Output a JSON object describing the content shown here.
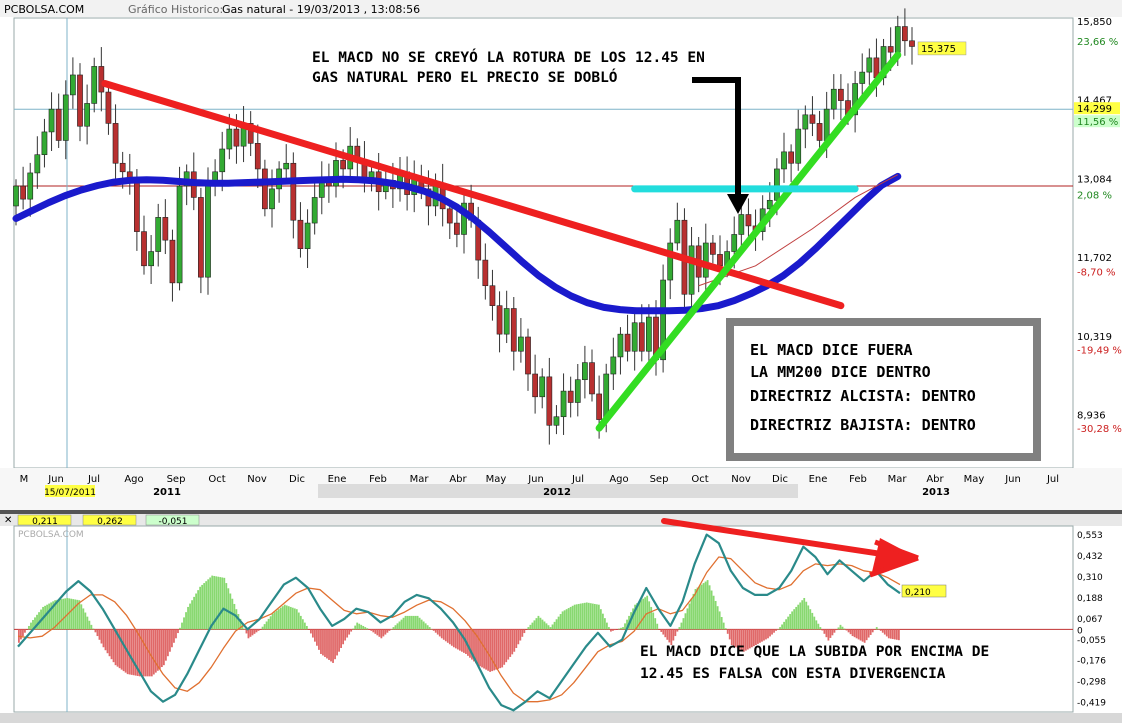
{
  "header": {
    "brand": "PCBOLSA.COM",
    "caption": "Gráfico Historico:",
    "instrument": "Gas natural - 19/03/2013 , 13:08:56"
  },
  "annotations": {
    "top_line1": "EL MACD NO SE CREYÓ LA ROTURA DE LOS 12.45 EN",
    "top_line2": "GAS NATURAL PERO EL PRECIO SE DOBLÓ",
    "box_line1": "EL MACD DICE FUERA",
    "box_line2": "LA MM200 DICE DENTRO",
    "box_line3": "DIRECTRIZ ALCISTA: DENTRO",
    "box_line4": "DIRECTRIZ BAJISTA: DENTRO",
    "bottom_line1": "EL MACD DICE QUE LA SUBIDA POR ENCIMA DE",
    "bottom_line2": "12.45 ES FALSA CON ESTA DIVERGENCIA"
  },
  "colors": {
    "bull": "#33aa33",
    "bear": "#b83030",
    "ma200": "#1a1acc",
    "trend_down": "#ee2020",
    "trend_up": "#33dd22",
    "resistance": "#22dddd",
    "macd_line": "#2a8a8a",
    "signal_line": "#e07030",
    "hist_pos": "#88d870",
    "hist_neg": "#e06868",
    "label_yellow": "#ffff44",
    "label_green": "#ccffcc",
    "axis_red": "#cc2020",
    "axis_green": "#208820"
  },
  "chart_data": [
    {
      "type": "candlestick",
      "title": "Gas natural",
      "ylim": [
        8.0,
        15.9
      ],
      "y_tick_labels": [
        "15,850",
        "14,467",
        "13,084",
        "11,702",
        "10,319",
        "8,936"
      ],
      "y_pct_labels": [
        "23,66 %",
        "2,08 %",
        "-8,70 %",
        "-19,49 %",
        "-30,28 %"
      ],
      "price_tags": [
        "15,375",
        "14,299",
        "11,56 %"
      ],
      "date_tag": "15/07/2011",
      "months": [
        "M",
        "Jun",
        "Jul",
        "Ago",
        "Sep",
        "Oct",
        "Nov",
        "Dic",
        "Ene",
        "Feb",
        "Mar",
        "Abr",
        "May",
        "Jun",
        "Jul",
        "Ago",
        "Sep",
        "Oct",
        "Nov",
        "Dic",
        "Ene",
        "Feb",
        "Mar",
        "Abr",
        "May",
        "Jun",
        "Jul"
      ],
      "years": [
        "2011",
        "2012",
        "2013"
      ],
      "start": 12.6,
      "closes": [
        12.95,
        12.72,
        13.18,
        13.5,
        13.9,
        14.3,
        13.75,
        14.55,
        14.9,
        14.0,
        14.4,
        15.05,
        14.6,
        14.05,
        13.35,
        13.2,
        13.0,
        12.15,
        11.55,
        11.8,
        12.4,
        12.0,
        11.25,
        12.95,
        13.2,
        12.75,
        11.35,
        12.95,
        13.2,
        13.6,
        13.95,
        13.65,
        14.05,
        13.7,
        13.25,
        12.55,
        12.9,
        13.25,
        13.35,
        12.35,
        11.85,
        12.3,
        12.75,
        13.1,
        12.95,
        13.4,
        13.25,
        13.65,
        13.4,
        13.1,
        13.2,
        12.85,
        13.05,
        12.9,
        13.2,
        12.8,
        13.1,
        12.9,
        12.6,
        13.0,
        12.55,
        12.3,
        12.1,
        12.65,
        12.35,
        11.65,
        11.2,
        10.85,
        10.35,
        10.8,
        10.05,
        10.3,
        9.65,
        9.25,
        9.6,
        8.75,
        8.9,
        9.35,
        9.15,
        9.55,
        9.85,
        9.3,
        8.85,
        9.65,
        9.95,
        10.35,
        10.05,
        10.55,
        10.05,
        10.65,
        9.9,
        11.3,
        11.95,
        12.35,
        11.05,
        11.9,
        11.35,
        11.95,
        11.75,
        11.55,
        11.8,
        12.1,
        12.45,
        12.25,
        12.15,
        12.55,
        12.7,
        13.25,
        13.55,
        13.35,
        13.95,
        14.2,
        14.05,
        13.75,
        14.3,
        14.65,
        14.45,
        14.2,
        14.75,
        14.95,
        15.2,
        14.85,
        15.4,
        15.3,
        15.75,
        15.5,
        15.4
      ],
      "ma200": [
        12.38,
        12.52,
        12.66,
        12.78,
        12.88,
        12.96,
        13.02,
        13.05,
        13.06,
        13.05,
        13.03,
        13.01,
        13.0,
        13.0,
        13.01,
        13.02,
        13.03,
        13.04,
        13.05,
        13.06,
        13.07,
        13.06,
        13.04,
        13.0,
        12.94,
        12.86,
        12.74,
        12.58,
        12.38,
        12.14,
        11.88,
        11.62,
        11.38,
        11.18,
        11.02,
        10.9,
        10.82,
        10.78,
        10.76,
        10.76,
        10.76,
        10.77,
        10.8,
        10.85,
        10.94,
        11.06,
        11.2,
        11.38,
        11.6,
        11.86,
        12.14,
        12.42,
        12.7,
        12.96,
        13.12
      ],
      "ma200_range": [
        0,
        124
      ],
      "trend_down_line": [
        [
          12.5,
          14.75
        ],
        [
          116,
          10.85
        ]
      ],
      "trend_up_line": [
        [
          82,
          8.7
        ],
        [
          124,
          15.25
        ]
      ],
      "resistance_line": [
        [
          87,
          12.9
        ],
        [
          118,
          12.9
        ]
      ],
      "hline_red": 12.95,
      "hline_blue": 14.299
    },
    {
      "type": "macd",
      "ylim": [
        -0.48,
        0.6
      ],
      "y_tick_labels": [
        "0,553",
        "0,432",
        "0,310",
        "0,188",
        "0,067",
        "0",
        "-0,055",
        "-0,176",
        "-0,298",
        "-0,419"
      ],
      "legend_values": [
        "0,211",
        "0,262",
        "-0,051"
      ],
      "last_value_tag": "0,210",
      "watermark": "PCBOLSA.COM",
      "macd": [
        -0.1,
        -0.02,
        0.06,
        0.14,
        0.22,
        0.28,
        0.22,
        0.12,
        0.0,
        -0.12,
        -0.24,
        -0.36,
        -0.42,
        -0.38,
        -0.26,
        -0.12,
        0.02,
        0.12,
        0.08,
        0.0,
        0.06,
        0.16,
        0.26,
        0.3,
        0.24,
        0.12,
        0.02,
        0.06,
        0.12,
        0.1,
        0.04,
        0.08,
        0.16,
        0.2,
        0.18,
        0.12,
        0.04,
        -0.06,
        -0.2,
        -0.34,
        -0.44,
        -0.47,
        -0.42,
        -0.36,
        -0.4,
        -0.3,
        -0.2,
        -0.1,
        -0.02,
        -0.1,
        -0.06,
        0.1,
        0.24,
        0.12,
        0.02,
        0.16,
        0.38,
        0.55,
        0.5,
        0.34,
        0.24,
        0.2,
        0.2,
        0.24,
        0.34,
        0.48,
        0.42,
        0.32,
        0.4,
        0.34,
        0.28,
        0.34,
        0.26,
        0.21
      ],
      "signal": [
        -0.04,
        -0.05,
        -0.04,
        0.01,
        0.08,
        0.15,
        0.2,
        0.2,
        0.16,
        0.08,
        -0.03,
        -0.15,
        -0.26,
        -0.34,
        -0.36,
        -0.31,
        -0.22,
        -0.11,
        -0.01,
        0.04,
        0.06,
        0.09,
        0.15,
        0.21,
        0.24,
        0.23,
        0.17,
        0.11,
        0.09,
        0.1,
        0.08,
        0.07,
        0.1,
        0.14,
        0.17,
        0.16,
        0.12,
        0.05,
        -0.04,
        -0.15,
        -0.27,
        -0.37,
        -0.42,
        -0.42,
        -0.41,
        -0.38,
        -0.31,
        -0.22,
        -0.13,
        -0.09,
        -0.07,
        -0.01,
        0.09,
        0.12,
        0.09,
        0.11,
        0.2,
        0.33,
        0.42,
        0.41,
        0.34,
        0.27,
        0.24,
        0.23,
        0.26,
        0.34,
        0.38,
        0.37,
        0.38,
        0.37,
        0.34,
        0.33,
        0.3,
        0.26
      ],
      "divergence_arrow": [
        [
          0.55,
          0.55
        ],
        [
          0.97,
          0.35
        ]
      ]
    }
  ]
}
